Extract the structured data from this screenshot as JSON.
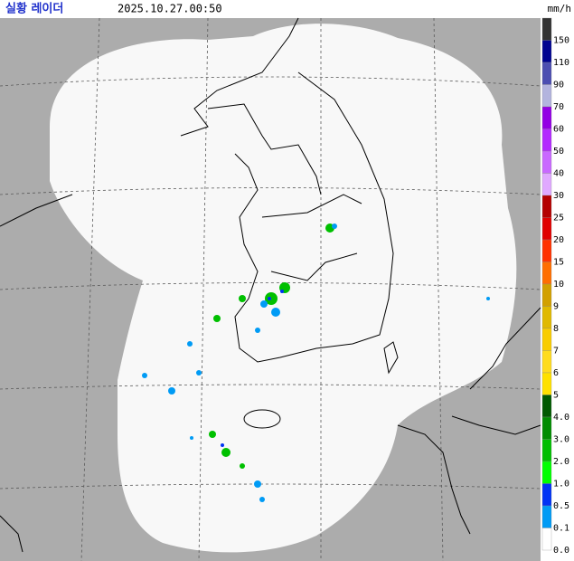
{
  "header": {
    "title": "실황 레이더",
    "time": "2025.10.27.00:50",
    "unit": "mm/h"
  },
  "legend": [
    {
      "label": "150",
      "color": "#333333"
    },
    {
      "label": "110",
      "color": "#000390"
    },
    {
      "label": "90",
      "color": "#4c4eb1"
    },
    {
      "label": "70",
      "color": "#b3b4de"
    },
    {
      "label": "60",
      "color": "#9300e4"
    },
    {
      "label": "50",
      "color": "#b329ff"
    },
    {
      "label": "40",
      "color": "#c969ff"
    },
    {
      "label": "30",
      "color": "#e0a9ff"
    },
    {
      "label": "25",
      "color": "#b40000"
    },
    {
      "label": "20",
      "color": "#e00000"
    },
    {
      "label": "15",
      "color": "#ff3200"
    },
    {
      "label": "10",
      "color": "#ff6e00"
    },
    {
      "label": "9",
      "color": "#d2a000"
    },
    {
      "label": "8",
      "color": "#e0b900"
    },
    {
      "label": "7",
      "color": "#f9cd00"
    },
    {
      "label": "6",
      "color": "#ffdc1f"
    },
    {
      "label": "5",
      "color": "#ffe100"
    },
    {
      "label": "4.0",
      "color": "#005a00"
    },
    {
      "label": "3.0",
      "color": "#008c00"
    },
    {
      "label": "2.0",
      "color": "#00be00"
    },
    {
      "label": "1.0",
      "color": "#00ff00"
    },
    {
      "label": "0.5",
      "color": "#0033f5"
    },
    {
      "label": "0.1",
      "color": "#009bf5"
    },
    {
      "label": "0.0",
      "color": "#ffffff"
    }
  ]
}
